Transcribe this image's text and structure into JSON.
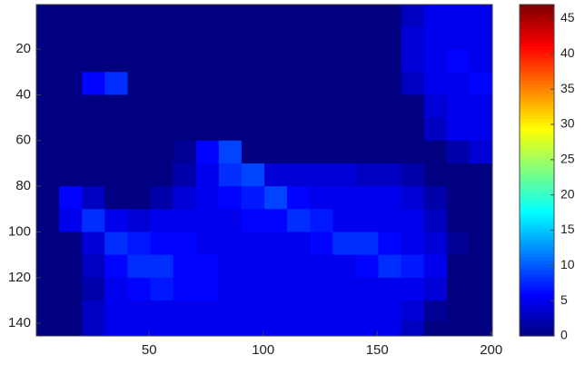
{
  "chart_data": {
    "type": "heatmap",
    "colormap": "jet",
    "y_reversed": true,
    "x": [
      5.5,
      15.5,
      25.5,
      35.5,
      45.5,
      55.5,
      65.5,
      75.5,
      85.5,
      95.5,
      105.5,
      115.5,
      125.5,
      135.5,
      145.5,
      155.5,
      165.5,
      175.5,
      185.5,
      195.5
    ],
    "y": [
      5,
      15,
      25,
      35,
      45,
      55,
      65,
      75,
      85,
      95,
      105,
      115,
      125,
      135,
      143
    ],
    "values": [
      [
        0,
        0,
        0,
        0,
        0,
        0,
        0,
        0,
        0,
        0,
        0,
        0,
        0,
        0,
        0,
        0,
        3,
        5,
        5,
        5
      ],
      [
        0,
        0,
        0,
        0,
        0,
        0,
        0,
        0,
        0,
        0,
        0,
        0,
        0,
        0,
        0,
        0,
        4,
        5,
        5,
        5
      ],
      [
        0,
        0,
        0,
        0,
        0,
        0,
        0,
        0,
        0,
        0,
        0,
        0,
        0,
        0,
        0,
        0,
        4,
        5,
        6,
        5
      ],
      [
        0,
        0,
        6,
        8,
        0,
        0,
        0,
        0,
        0,
        0,
        0,
        0,
        0,
        0,
        0,
        0,
        3,
        5,
        5,
        6
      ],
      [
        0,
        0,
        0,
        0,
        0,
        0,
        0,
        0,
        0,
        0,
        0,
        0,
        0,
        0,
        0,
        0,
        0,
        4,
        5,
        5
      ],
      [
        0,
        0,
        0,
        0,
        0,
        0,
        0,
        0,
        0,
        0,
        0,
        0,
        0,
        0,
        0,
        0,
        0,
        3,
        5,
        5
      ],
      [
        0,
        0,
        0,
        0,
        0,
        0,
        1,
        6,
        9,
        0,
        0,
        0,
        0,
        0,
        0,
        0,
        0,
        0,
        2,
        4
      ],
      [
        0,
        0,
        0,
        0,
        0,
        0,
        2,
        5,
        8,
        9,
        4,
        4,
        4,
        4,
        3,
        3,
        2,
        0,
        0,
        0
      ],
      [
        0,
        6,
        3,
        0,
        0,
        2,
        4,
        5,
        6,
        7,
        9,
        6,
        5,
        5,
        5,
        5,
        4,
        2,
        0,
        0
      ],
      [
        0,
        5,
        8,
        5,
        4,
        5,
        5,
        5,
        5,
        6,
        6,
        8,
        7,
        5,
        5,
        5,
        5,
        3,
        0,
        0
      ],
      [
        0,
        0,
        4,
        8,
        7,
        6,
        6,
        5,
        5,
        5,
        5,
        5,
        6,
        8,
        8,
        6,
        5,
        4,
        1,
        0
      ],
      [
        0,
        0,
        3,
        6,
        8,
        8,
        6,
        6,
        5,
        5,
        5,
        5,
        5,
        5,
        6,
        8,
        7,
        5,
        0,
        0
      ],
      [
        0,
        0,
        2,
        5,
        6,
        7,
        6,
        6,
        5,
        5,
        5,
        5,
        5,
        5,
        5,
        5,
        5,
        4,
        0,
        0
      ],
      [
        0,
        0,
        3,
        5,
        5,
        5,
        5,
        5,
        5,
        5,
        5,
        5,
        5,
        5,
        5,
        5,
        4,
        1,
        0,
        0
      ],
      [
        0,
        0,
        3,
        5,
        5,
        5,
        5,
        5,
        5,
        5,
        5,
        5,
        5,
        5,
        5,
        5,
        3,
        0,
        0,
        0
      ]
    ],
    "xlim": [
      0.5,
      200.5
    ],
    "ylim": [
      0.5,
      145.5
    ],
    "xticks": [
      50,
      100,
      150,
      200
    ],
    "yticks": [
      20,
      40,
      60,
      80,
      100,
      120,
      140
    ],
    "clim": [
      0,
      47
    ],
    "colorbar_ticks": [
      0,
      5,
      10,
      15,
      20,
      25,
      30,
      35,
      40,
      45
    ]
  }
}
